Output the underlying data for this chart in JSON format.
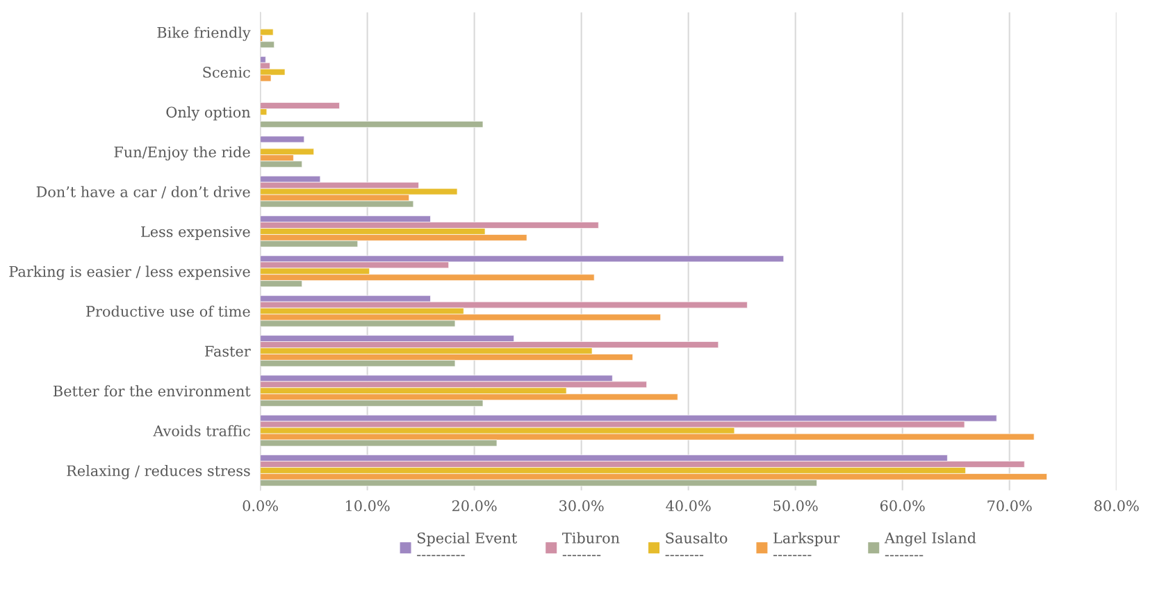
{
  "chart_data": {
    "type": "bar",
    "orientation": "horizontal",
    "categories": [
      "Bike friendly",
      "Scenic",
      "Only option",
      "Fun/Enjoy the ride",
      "Don’t have a car / don’t drive",
      "Less expensive",
      "Parking is easier / less expensive",
      "Productive use of time",
      "Faster",
      "Better for the environment",
      "Avoids traffic",
      "Relaxing / reduces stress"
    ],
    "series": [
      {
        "name": "Special Event\n----------",
        "color": "#9e87c2",
        "values": [
          null,
          0.5,
          null,
          4.1,
          5.6,
          15.9,
          48.9,
          15.9,
          23.7,
          32.9,
          68.8,
          64.2
        ]
      },
      {
        "name": "Tiburon\n--------",
        "color": "#d090a5",
        "values": [
          null,
          0.9,
          7.4,
          null,
          14.8,
          31.6,
          17.6,
          45.5,
          42.8,
          36.1,
          65.8,
          71.4
        ]
      },
      {
        "name": "Sausalto\n--------",
        "color": "#e6bc2c",
        "values": [
          1.2,
          2.3,
          0.6,
          5.0,
          18.4,
          21.0,
          10.2,
          19.0,
          31.0,
          28.6,
          44.3,
          65.9
        ]
      },
      {
        "name": "Larkspur\n--------",
        "color": "#f2a149",
        "values": [
          0.2,
          1.0,
          null,
          3.1,
          13.9,
          24.9,
          31.2,
          37.4,
          34.8,
          39.0,
          72.3,
          73.5
        ]
      },
      {
        "name": "Angel Island\n--------",
        "color": "#a5b391",
        "values": [
          1.3,
          null,
          20.8,
          3.9,
          14.3,
          9.1,
          3.9,
          18.2,
          18.2,
          20.8,
          22.1,
          52.0
        ]
      }
    ],
    "xlim": [
      0,
      80
    ],
    "xticks": [
      {
        "value": 0,
        "label": "0.0%"
      },
      {
        "value": 10,
        "label": "10.0%"
      },
      {
        "value": 20,
        "label": "20.0%"
      },
      {
        "value": 30,
        "label": "30.0%"
      },
      {
        "value": 40,
        "label": "40.0%"
      },
      {
        "value": 50,
        "label": "50.0%"
      },
      {
        "value": 60,
        "label": "60.0%"
      },
      {
        "value": 70,
        "label": "70.0%"
      },
      {
        "value": 80,
        "label": "80.0%"
      }
    ],
    "grid": "x",
    "legend": "bottom"
  }
}
